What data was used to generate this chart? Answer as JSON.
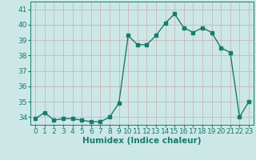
{
  "x": [
    0,
    1,
    2,
    3,
    4,
    5,
    6,
    7,
    8,
    9,
    10,
    11,
    12,
    13,
    14,
    15,
    16,
    17,
    18,
    19,
    20,
    21,
    22,
    23
  ],
  "y": [
    33.9,
    34.3,
    33.8,
    33.9,
    33.9,
    33.8,
    33.7,
    33.7,
    34.0,
    34.9,
    39.3,
    38.7,
    38.7,
    39.3,
    40.1,
    40.7,
    39.8,
    39.5,
    39.8,
    39.5,
    38.5,
    38.2,
    34.0,
    35.0
  ],
  "xlabel": "Humidex (Indice chaleur)",
  "ylim": [
    33.5,
    41.5
  ],
  "xlim": [
    -0.5,
    23.5
  ],
  "yticks": [
    34,
    35,
    36,
    37,
    38,
    39,
    40,
    41
  ],
  "xticks": [
    0,
    1,
    2,
    3,
    4,
    5,
    6,
    7,
    8,
    9,
    10,
    11,
    12,
    13,
    14,
    15,
    16,
    17,
    18,
    19,
    20,
    21,
    22,
    23
  ],
  "line_color": "#1a7a6e",
  "bg_color": "#cce8e6",
  "grid_color": "#c8b8b8",
  "marker": "s",
  "markersize": 2.5,
  "linewidth": 1.0,
  "xlabel_fontsize": 7.5,
  "tick_fontsize": 6.5
}
